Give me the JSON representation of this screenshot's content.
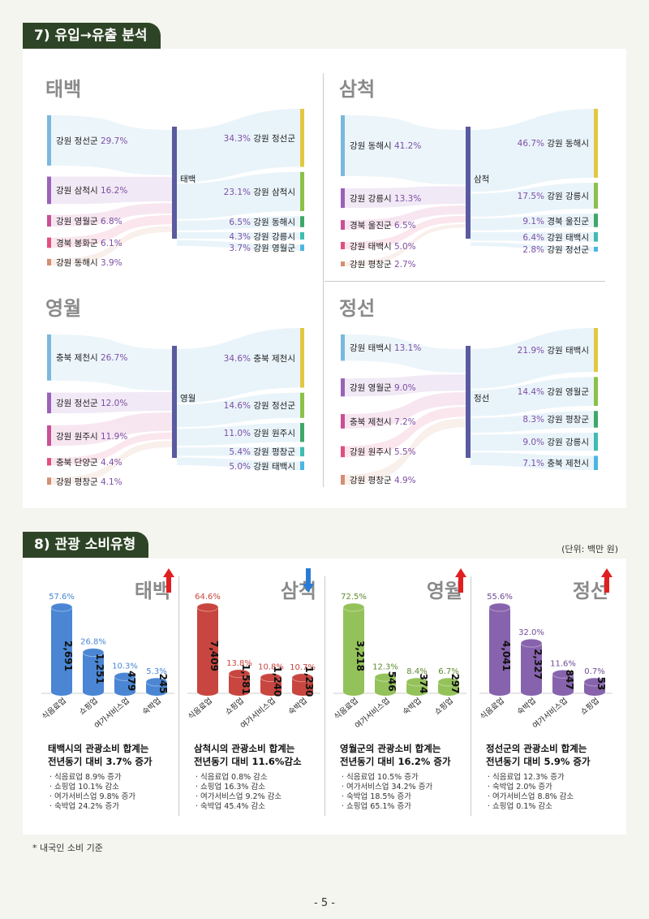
{
  "section7": {
    "title": "7) 유입→유출 분석"
  },
  "flows": [
    {
      "city": "태백",
      "center": "태백",
      "inflow": [
        {
          "name": "강원 정선군",
          "pct": "29.7%",
          "color": "#7ab8dd"
        },
        {
          "name": "강원 삼척시",
          "pct": "16.2%",
          "color": "#9a62b8"
        },
        {
          "name": "강원 영월군",
          "pct": "6.8%",
          "color": "#c94f96"
        },
        {
          "name": "경북 봉화군",
          "pct": "6.1%",
          "color": "#e0507e"
        },
        {
          "name": "강원 동해시",
          "pct": "3.9%",
          "color": "#d39070"
        }
      ],
      "outflow": [
        {
          "name": "강원 정선군",
          "pct": "34.3%",
          "color": "#e2c840"
        },
        {
          "name": "강원 삼척시",
          "pct": "23.1%",
          "color": "#8cc048"
        },
        {
          "name": "강원 동해시",
          "pct": "6.5%",
          "color": "#3ea866"
        },
        {
          "name": "강원 강릉시",
          "pct": "4.3%",
          "color": "#3fbcb0"
        },
        {
          "name": "강원 영월군",
          "pct": "3.7%",
          "color": "#4cb6e2"
        }
      ]
    },
    {
      "city": "삼척",
      "center": "삼척",
      "inflow": [
        {
          "name": "강원 동해시",
          "pct": "41.2%",
          "color": "#7ab8dd"
        },
        {
          "name": "강원 강릉시",
          "pct": "13.3%",
          "color": "#9a62b8"
        },
        {
          "name": "경북 울진군",
          "pct": "6.5%",
          "color": "#c94f96"
        },
        {
          "name": "강원 태백시",
          "pct": "5.0%",
          "color": "#e0507e"
        },
        {
          "name": "강원 평창군",
          "pct": "2.7%",
          "color": "#d39070"
        }
      ],
      "outflow": [
        {
          "name": "강원 동해시",
          "pct": "46.7%",
          "color": "#e2c840"
        },
        {
          "name": "강원 강릉시",
          "pct": "17.5%",
          "color": "#8cc048"
        },
        {
          "name": "경북 울진군",
          "pct": "9.1%",
          "color": "#3ea866"
        },
        {
          "name": "강원 태백시",
          "pct": "6.4%",
          "color": "#3fbcb0"
        },
        {
          "name": "강원 정선군",
          "pct": "2.8%",
          "color": "#4cb6e2"
        }
      ]
    },
    {
      "city": "영월",
      "center": "영월",
      "inflow": [
        {
          "name": "충북 제천시",
          "pct": "26.7%",
          "color": "#7ab8dd"
        },
        {
          "name": "강원 정선군",
          "pct": "12.0%",
          "color": "#9a62b8"
        },
        {
          "name": "강원 원주시",
          "pct": "11.9%",
          "color": "#c94f96"
        },
        {
          "name": "충북 단양군",
          "pct": "4.4%",
          "color": "#e0507e"
        },
        {
          "name": "강원 평창군",
          "pct": "4.1%",
          "color": "#d39070"
        }
      ],
      "outflow": [
        {
          "name": "충북 제천시",
          "pct": "34.6%",
          "color": "#e2c840"
        },
        {
          "name": "강원 정선군",
          "pct": "14.6%",
          "color": "#8cc048"
        },
        {
          "name": "강원 원주시",
          "pct": "11.0%",
          "color": "#3ea866"
        },
        {
          "name": "강원 평창군",
          "pct": "5.4%",
          "color": "#3fbcb0"
        },
        {
          "name": "강원 태백시",
          "pct": "5.0%",
          "color": "#4cb6e2"
        }
      ]
    },
    {
      "city": "정선",
      "center": "정선",
      "inflow": [
        {
          "name": "강원 태백시",
          "pct": "13.1%",
          "color": "#7ab8dd"
        },
        {
          "name": "강원 영월군",
          "pct": "9.0%",
          "color": "#9a62b8"
        },
        {
          "name": "충북 제천시",
          "pct": "7.2%",
          "color": "#c94f96"
        },
        {
          "name": "강원 원주시",
          "pct": "5.5%",
          "color": "#e0507e"
        },
        {
          "name": "강원 평창군",
          "pct": "4.9%",
          "color": "#d39070"
        }
      ],
      "outflow": [
        {
          "name": "강원 태백시",
          "pct": "21.9%",
          "color": "#e2c840"
        },
        {
          "name": "강원 영월군",
          "pct": "14.4%",
          "color": "#8cc048"
        },
        {
          "name": "강원 평창군",
          "pct": "8.3%",
          "color": "#3ea866"
        },
        {
          "name": "강원 강릉시",
          "pct": "9.0%",
          "color": "#3fbcb0"
        },
        {
          "name": "충북 제천시",
          "pct": "7.1%",
          "color": "#4cb6e2"
        }
      ]
    }
  ],
  "section8": {
    "title": "8) 관광 소비유형",
    "unit": "(단위: 백만 원)"
  },
  "chart_data": [
    {
      "type": "bar",
      "title": "태백",
      "categories": [
        "식음료업",
        "쇼핑업",
        "여가서비스업",
        "숙박업"
      ],
      "values": [
        2691,
        1251,
        479,
        245
      ],
      "value_labels": [
        "2,691",
        "1,251",
        "479",
        "245"
      ],
      "shares": [
        "57.6%",
        "26.8%",
        "10.3%",
        "5.3%"
      ],
      "color": "#4a86d4",
      "share_color": "#4a86d4",
      "summary": [
        "태백시의 관광소비 합계는",
        "전년동기 대비 3.7% 증가"
      ],
      "direction": "up",
      "bullets": [
        "· 식음료업 8.9% 증가",
        "· 쇼핑업 10.1% 감소",
        "· 여가서비스업 9.8% 증가",
        "· 숙박업 24.2% 증가"
      ]
    },
    {
      "type": "bar",
      "title": "삼척",
      "categories": [
        "식음료업",
        "쇼핑업",
        "여가서비스업",
        "숙박업"
      ],
      "values": [
        7409,
        1581,
        1240,
        1230
      ],
      "value_labels": [
        "7,409",
        "1,581",
        "1,240",
        "1,230"
      ],
      "shares": [
        "64.6%",
        "13.8%",
        "10.8%",
        "10.7%"
      ],
      "color": "#c8463f",
      "share_color": "#c8463f",
      "summary": [
        "삼척시의 관광소비 합계는",
        "전년동기 대비 11.6%감소"
      ],
      "direction": "down",
      "bullets": [
        "· 식음료업 0.8% 감소",
        "· 쇼핑업 16.3% 감소",
        "· 여가서비스업 9.2% 감소",
        "· 숙박업 45.4% 감소"
      ]
    },
    {
      "type": "bar",
      "title": "영월",
      "categories": [
        "식음료업",
        "여가서비스업",
        "숙박업",
        "쇼핑업"
      ],
      "values": [
        3218,
        546,
        374,
        297
      ],
      "value_labels": [
        "3,218",
        "546",
        "374",
        "297"
      ],
      "shares": [
        "72.5%",
        "12.3%",
        "8.4%",
        "6.7%"
      ],
      "color": "#94c25a",
      "share_color": "#5f8a2e",
      "summary": [
        "영월군의 관광소비 합계는",
        "전년동기 대비 16.2% 증가"
      ],
      "direction": "up",
      "bullets": [
        "· 식음료업 10.5% 증가",
        "· 여가서비스업 34.2% 증가",
        "· 숙박업 18.5% 증가",
        "· 쇼핑업 65.1% 증가"
      ]
    },
    {
      "type": "bar",
      "title": "정선",
      "categories": [
        "식음료업",
        "숙박업",
        "여가서비스업",
        "쇼핑업"
      ],
      "values": [
        4041,
        2327,
        847,
        53
      ],
      "value_labels": [
        "4,041",
        "2,327",
        "847",
        "53"
      ],
      "shares": [
        "55.6%",
        "32.0%",
        "11.6%",
        "0.7%"
      ],
      "color": "#8763ad",
      "share_color": "#6e4a96",
      "summary": [
        "정선군의 관광소비 합계는",
        "전년동기 대비 5.9% 증가"
      ],
      "direction": "up",
      "bullets": [
        "· 식음료업 12.3% 증가",
        "· 숙박업 2.0% 증가",
        "· 여가서비스업 8.8% 감소",
        "· 쇼핑업 0.1% 감소"
      ]
    }
  ],
  "footnote": "* 내국인 소비 기준",
  "page_number": "- 5 -",
  "colors": {
    "header_bg": "#2e4426",
    "arrow_up": "#e02020",
    "arrow_down": "#2a7bd6"
  }
}
